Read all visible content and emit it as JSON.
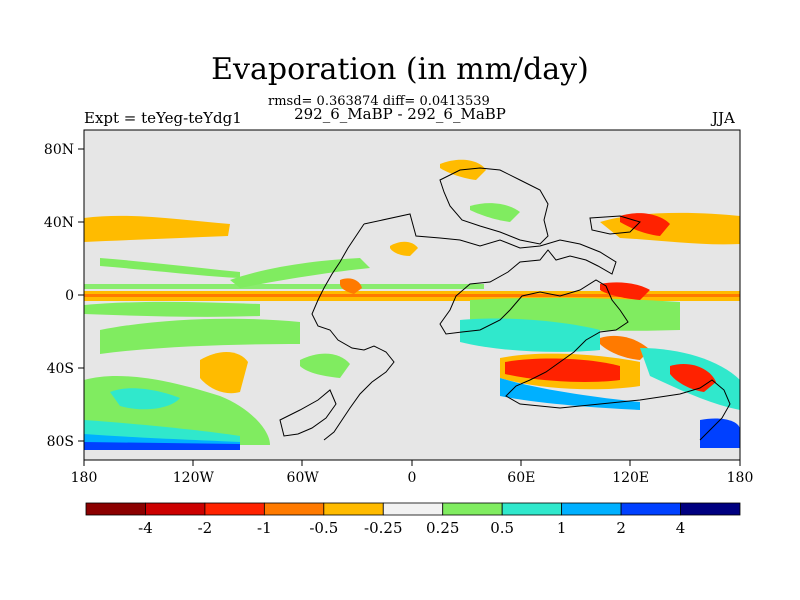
{
  "title": "Evaporation (in mm/day)",
  "stats": "rmsd= 0.363874 diff= 0.0413539",
  "left_label": "Expt = teYeg-teYdg1",
  "center_label": "292_6_MaBP - 292_6_MaBP",
  "right_label": "JJA",
  "map_data": {
    "type": "filled-contour-map",
    "projection": "cylindrical-equidistant",
    "lon_range": [
      -180,
      180
    ],
    "lat_range": [
      -90,
      90
    ],
    "background_color": "#e6e6e6",
    "coastline_color": "#000000",
    "x_tick_labels": [
      "180",
      "120W",
      "60W",
      "0",
      "60E",
      "120E",
      "180"
    ],
    "y_tick_labels": [
      "80N",
      "40N",
      "0",
      "40S",
      "80S"
    ]
  },
  "colorbar": {
    "colors": [
      "#8b0000",
      "#cc0000",
      "#ff2200",
      "#ff7a00",
      "#ffbb00",
      "#f2f2f2",
      "#80ec60",
      "#30e8cc",
      "#00b0ff",
      "#0040ff",
      "#000080"
    ],
    "labels": [
      "-4",
      "-2",
      "-1",
      "-0.5",
      "-0.25",
      "0.25",
      "0.5",
      "1",
      "2",
      "4"
    ]
  }
}
